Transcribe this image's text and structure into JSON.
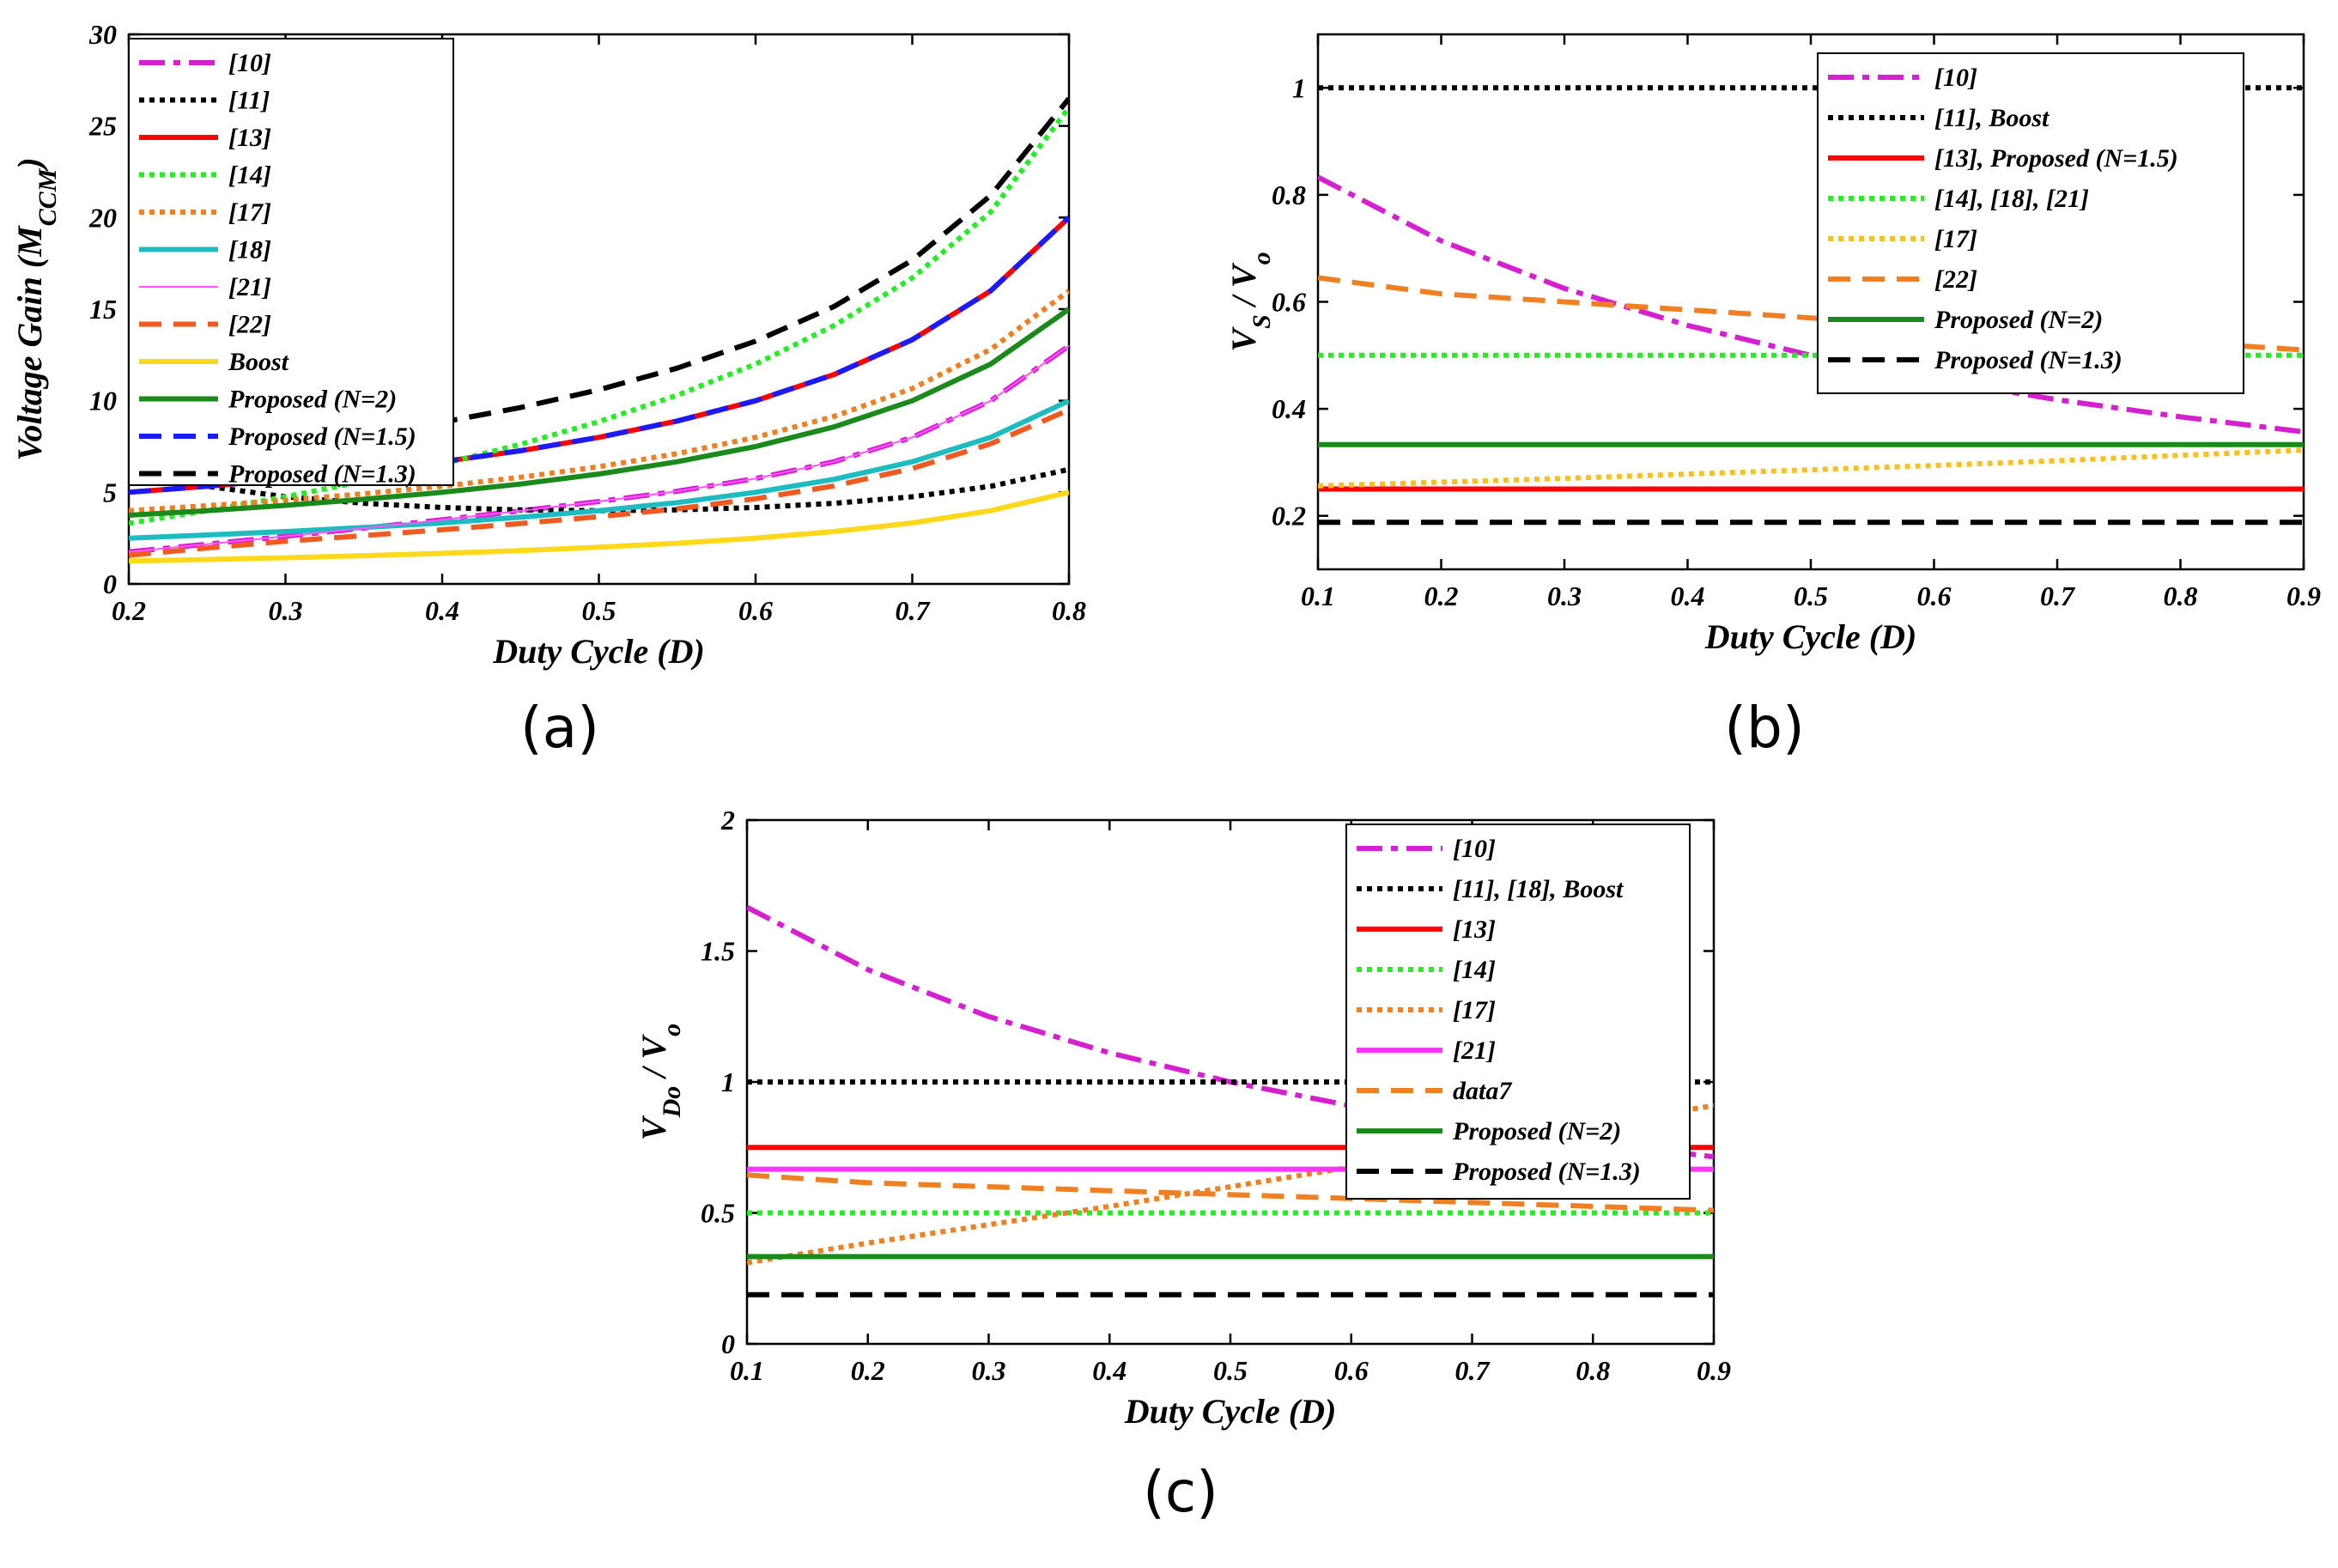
{
  "chart_data": [
    {
      "type": "line",
      "panel_label": "(a)",
      "xlabel": "Duty Cycle (D)",
      "ylabel": "Voltage Gain (M_CCM)",
      "ylabel_parts": {
        "pre": "Voltage Gain (",
        "sym": "M",
        "sub": "CCM",
        "post": ")"
      },
      "xlim": [
        0.2,
        0.8
      ],
      "ylim": [
        0,
        30
      ],
      "xticks": [
        "0.2",
        "0.3",
        "0.4",
        "0.5",
        "0.6",
        "0.7",
        "0.8"
      ],
      "yticks": [
        "0",
        "5",
        "10",
        "15",
        "20",
        "25",
        "30"
      ],
      "legend_position": "top-left",
      "x": [
        0.2,
        0.25,
        0.3,
        0.35,
        0.4,
        0.45,
        0.5,
        0.55,
        0.6,
        0.65,
        0.7,
        0.75,
        0.8
      ],
      "series": [
        {
          "name": "[10]",
          "color": "#d61fd0",
          "dash": "dashdot",
          "width": 6,
          "values": [
            1.75,
            2.17,
            2.6,
            3.04,
            3.5,
            3.99,
            4.5,
            5.06,
            5.75,
            6.67,
            8.0,
            10.0,
            13.0
          ]
        },
        {
          "name": "[11]",
          "color": "#000000",
          "dash": "dotted",
          "width": 6,
          "values": [
            6.25,
            5.33,
            4.76,
            4.4,
            4.17,
            4.04,
            4.0,
            4.04,
            4.17,
            4.4,
            4.76,
            5.33,
            6.25
          ]
        },
        {
          "name": "[13]",
          "color": "#ff0000",
          "dash": "solid",
          "width": 6,
          "values": [
            5.0,
            5.33,
            5.71,
            6.15,
            6.67,
            7.27,
            8.0,
            8.89,
            10.0,
            11.43,
            13.33,
            16.0,
            20.0
          ]
        },
        {
          "name": "[14]",
          "color": "#22ee22",
          "dash": "dotted",
          "width": 6,
          "values": [
            3.31,
            4.0,
            4.76,
            5.6,
            6.55,
            7.62,
            8.86,
            10.3,
            12.0,
            14.1,
            16.7,
            20.3,
            26.0
          ]
        },
        {
          "name": "[17]",
          "color": "#f07f22",
          "dash": "dotted",
          "width": 6,
          "values": [
            4.0,
            4.27,
            4.57,
            4.92,
            5.33,
            5.82,
            6.4,
            7.11,
            8.0,
            9.14,
            10.67,
            12.8,
            16.0
          ]
        },
        {
          "name": "[18]",
          "color": "#1dbcc0",
          "dash": "solid",
          "width": 6,
          "values": [
            2.5,
            2.67,
            2.86,
            3.08,
            3.33,
            3.64,
            4.0,
            4.44,
            5.0,
            5.71,
            6.67,
            8.0,
            10.0
          ]
        },
        {
          "name": "[21]",
          "color": "#ff55ff",
          "dash": "solid",
          "width": 2,
          "values": [
            1.75,
            2.17,
            2.6,
            3.04,
            3.5,
            3.99,
            4.5,
            5.06,
            5.75,
            6.67,
            8.0,
            10.0,
            13.0
          ]
        },
        {
          "name": "[22]",
          "color": "#f05a20",
          "dash": "dashed",
          "width": 6,
          "values": [
            1.56,
            1.96,
            2.33,
            2.64,
            2.96,
            3.3,
            3.67,
            4.1,
            4.65,
            5.35,
            6.3,
            7.65,
            9.5
          ]
        },
        {
          "name": "Boost",
          "color": "#ffd81a",
          "dash": "solid",
          "width": 6,
          "values": [
            1.25,
            1.33,
            1.43,
            1.54,
            1.67,
            1.82,
            2.0,
            2.22,
            2.5,
            2.86,
            3.33,
            4.0,
            5.0
          ]
        },
        {
          "name": "Proposed (N=2)",
          "color": "#1a8a1a",
          "dash": "solid",
          "width": 6,
          "values": [
            3.75,
            4.0,
            4.29,
            4.62,
            5.0,
            5.45,
            6.0,
            6.67,
            7.5,
            8.57,
            10.0,
            12.0,
            15.0
          ]
        },
        {
          "name": "Proposed (N=1.5)",
          "color": "#1a1aff",
          "dash": "dashed",
          "width": 6,
          "values": [
            5.0,
            5.33,
            5.71,
            6.15,
            6.67,
            7.27,
            8.0,
            8.89,
            10.0,
            11.43,
            13.33,
            16.0,
            20.0
          ]
        },
        {
          "name": "Proposed (N=1.3)",
          "color": "#000000",
          "dash": "dashed",
          "width": 6,
          "values": [
            6.63,
            7.07,
            7.57,
            8.15,
            8.83,
            9.63,
            10.6,
            11.78,
            13.25,
            15.14,
            17.67,
            21.2,
            26.5
          ]
        }
      ]
    },
    {
      "type": "line",
      "panel_label": "(b)",
      "xlabel": "Duty Cycle (D)",
      "ylabel": "V_S / V_o",
      "ylabel_parts": {
        "sym1": "V",
        "sub1": "S",
        "mid": " / ",
        "sym2": "V",
        "sub2": "o"
      },
      "xlim": [
        0.1,
        0.9
      ],
      "ylim": [
        0.1,
        1.1
      ],
      "xticks": [
        "0.1",
        "0.2",
        "0.3",
        "0.4",
        "0.5",
        "0.6",
        "0.7",
        "0.8",
        "0.9"
      ],
      "yticks": [
        "0.2",
        "0.4",
        "0.6",
        "0.8",
        "1"
      ],
      "legend_position": "top-right",
      "x": [
        0.1,
        0.2,
        0.3,
        0.4,
        0.5,
        0.6,
        0.7,
        0.8,
        0.9
      ],
      "series": [
        {
          "name": "[10]",
          "color": "#d61fd0",
          "dash": "dashdot",
          "width": 6,
          "values": [
            0.833,
            0.714,
            0.625,
            0.556,
            0.5,
            0.455,
            0.417,
            0.385,
            0.357
          ]
        },
        {
          "name": "[11],  Boost",
          "color": "#000000",
          "dash": "dotted",
          "width": 6,
          "values": [
            1,
            1,
            1,
            1,
            1,
            1,
            1,
            1,
            1
          ]
        },
        {
          "name": "[13], Proposed (N=1.5)",
          "color": "#ff0000",
          "dash": "solid",
          "width": 6,
          "values": [
            0.25,
            0.25,
            0.25,
            0.25,
            0.25,
            0.25,
            0.25,
            0.25,
            0.25
          ]
        },
        {
          "name": "[14], [18], [21]",
          "color": "#22ee22",
          "dash": "dotted",
          "width": 6,
          "values": [
            0.5,
            0.5,
            0.5,
            0.5,
            0.5,
            0.5,
            0.5,
            0.5,
            0.5
          ]
        },
        {
          "name": "[17]",
          "color": "#ffbf1a",
          "dash": "dotted",
          "width": 6,
          "values": [
            0.256,
            0.263,
            0.27,
            0.278,
            0.286,
            0.294,
            0.303,
            0.313,
            0.323
          ]
        },
        {
          "name": "[22]",
          "color": "#f07f22",
          "dash": "dashed",
          "width": 6,
          "values": [
            0.645,
            0.615,
            0.6,
            0.585,
            0.57,
            0.555,
            0.54,
            0.525,
            0.51
          ]
        },
        {
          "name": "Proposed (N=2)",
          "color": "#1a8a1a",
          "dash": "solid",
          "width": 6,
          "values": [
            0.333,
            0.333,
            0.333,
            0.333,
            0.333,
            0.333,
            0.333,
            0.333,
            0.333
          ]
        },
        {
          "name": "Proposed (N=1.3)",
          "color": "#000000",
          "dash": "dashed",
          "width": 6,
          "values": [
            0.188,
            0.188,
            0.188,
            0.188,
            0.188,
            0.188,
            0.188,
            0.188,
            0.188
          ]
        }
      ]
    },
    {
      "type": "line",
      "panel_label": "(c)",
      "xlabel": "Duty Cycle (D)",
      "ylabel": "V_Do / V_o",
      "ylabel_parts": {
        "sym1": "V",
        "sub1": "Do",
        "mid": " / ",
        "sym2": "V",
        "sub2": "o"
      },
      "xlim": [
        0.1,
        0.9
      ],
      "ylim": [
        0,
        2
      ],
      "xticks": [
        "0.1",
        "0.2",
        "0.3",
        "0.4",
        "0.5",
        "0.6",
        "0.7",
        "0.8",
        "0.9"
      ],
      "yticks": [
        "0",
        "0.5",
        "1",
        "1.5",
        "2"
      ],
      "legend_position": "top-right",
      "x": [
        0.1,
        0.2,
        0.3,
        0.4,
        0.5,
        0.6,
        0.7,
        0.8,
        0.9
      ],
      "series": [
        {
          "name": "[10]",
          "color": "#d61fd0",
          "dash": "dashdot",
          "width": 6,
          "values": [
            1.667,
            1.429,
            1.25,
            1.111,
            1.0,
            0.909,
            0.833,
            0.769,
            0.714
          ]
        },
        {
          "name": "[11], [18], Boost",
          "color": "#000000",
          "dash": "dotted",
          "width": 6,
          "values": [
            1,
            1,
            1,
            1,
            1,
            1,
            1,
            1,
            1
          ]
        },
        {
          "name": "[13]",
          "color": "#ff0000",
          "dash": "solid",
          "width": 6,
          "values": [
            0.75,
            0.75,
            0.75,
            0.75,
            0.75,
            0.75,
            0.75,
            0.75,
            0.75
          ]
        },
        {
          "name": "[14]",
          "color": "#22ee22",
          "dash": "dotted",
          "width": 6,
          "values": [
            0.5,
            0.5,
            0.5,
            0.5,
            0.5,
            0.5,
            0.5,
            0.5,
            0.5
          ]
        },
        {
          "name": "[17]",
          "color": "#f07f22",
          "dash": "dotted",
          "width": 6,
          "values": [
            0.31,
            0.385,
            0.455,
            0.525,
            0.6,
            0.675,
            0.755,
            0.835,
            0.91
          ]
        },
        {
          "name": "[21]",
          "color": "#ff33ff",
          "dash": "solid",
          "width": 6,
          "values": [
            0.667,
            0.667,
            0.667,
            0.667,
            0.667,
            0.667,
            0.667,
            0.667,
            0.667
          ]
        },
        {
          "name": "data7",
          "color": "#f07f22",
          "dash": "dashed",
          "width": 6,
          "values": [
            0.645,
            0.615,
            0.6,
            0.585,
            0.57,
            0.555,
            0.54,
            0.525,
            0.51
          ]
        },
        {
          "name": "Proposed (N=2)",
          "color": "#1a8a1a",
          "dash": "solid",
          "width": 6,
          "values": [
            0.333,
            0.333,
            0.333,
            0.333,
            0.333,
            0.333,
            0.333,
            0.333,
            0.333
          ]
        },
        {
          "name": "Proposed (N=1.3)",
          "color": "#000000",
          "dash": "dashed",
          "width": 6,
          "values": [
            0.188,
            0.188,
            0.188,
            0.188,
            0.188,
            0.188,
            0.188,
            0.188,
            0.188
          ]
        }
      ]
    }
  ]
}
